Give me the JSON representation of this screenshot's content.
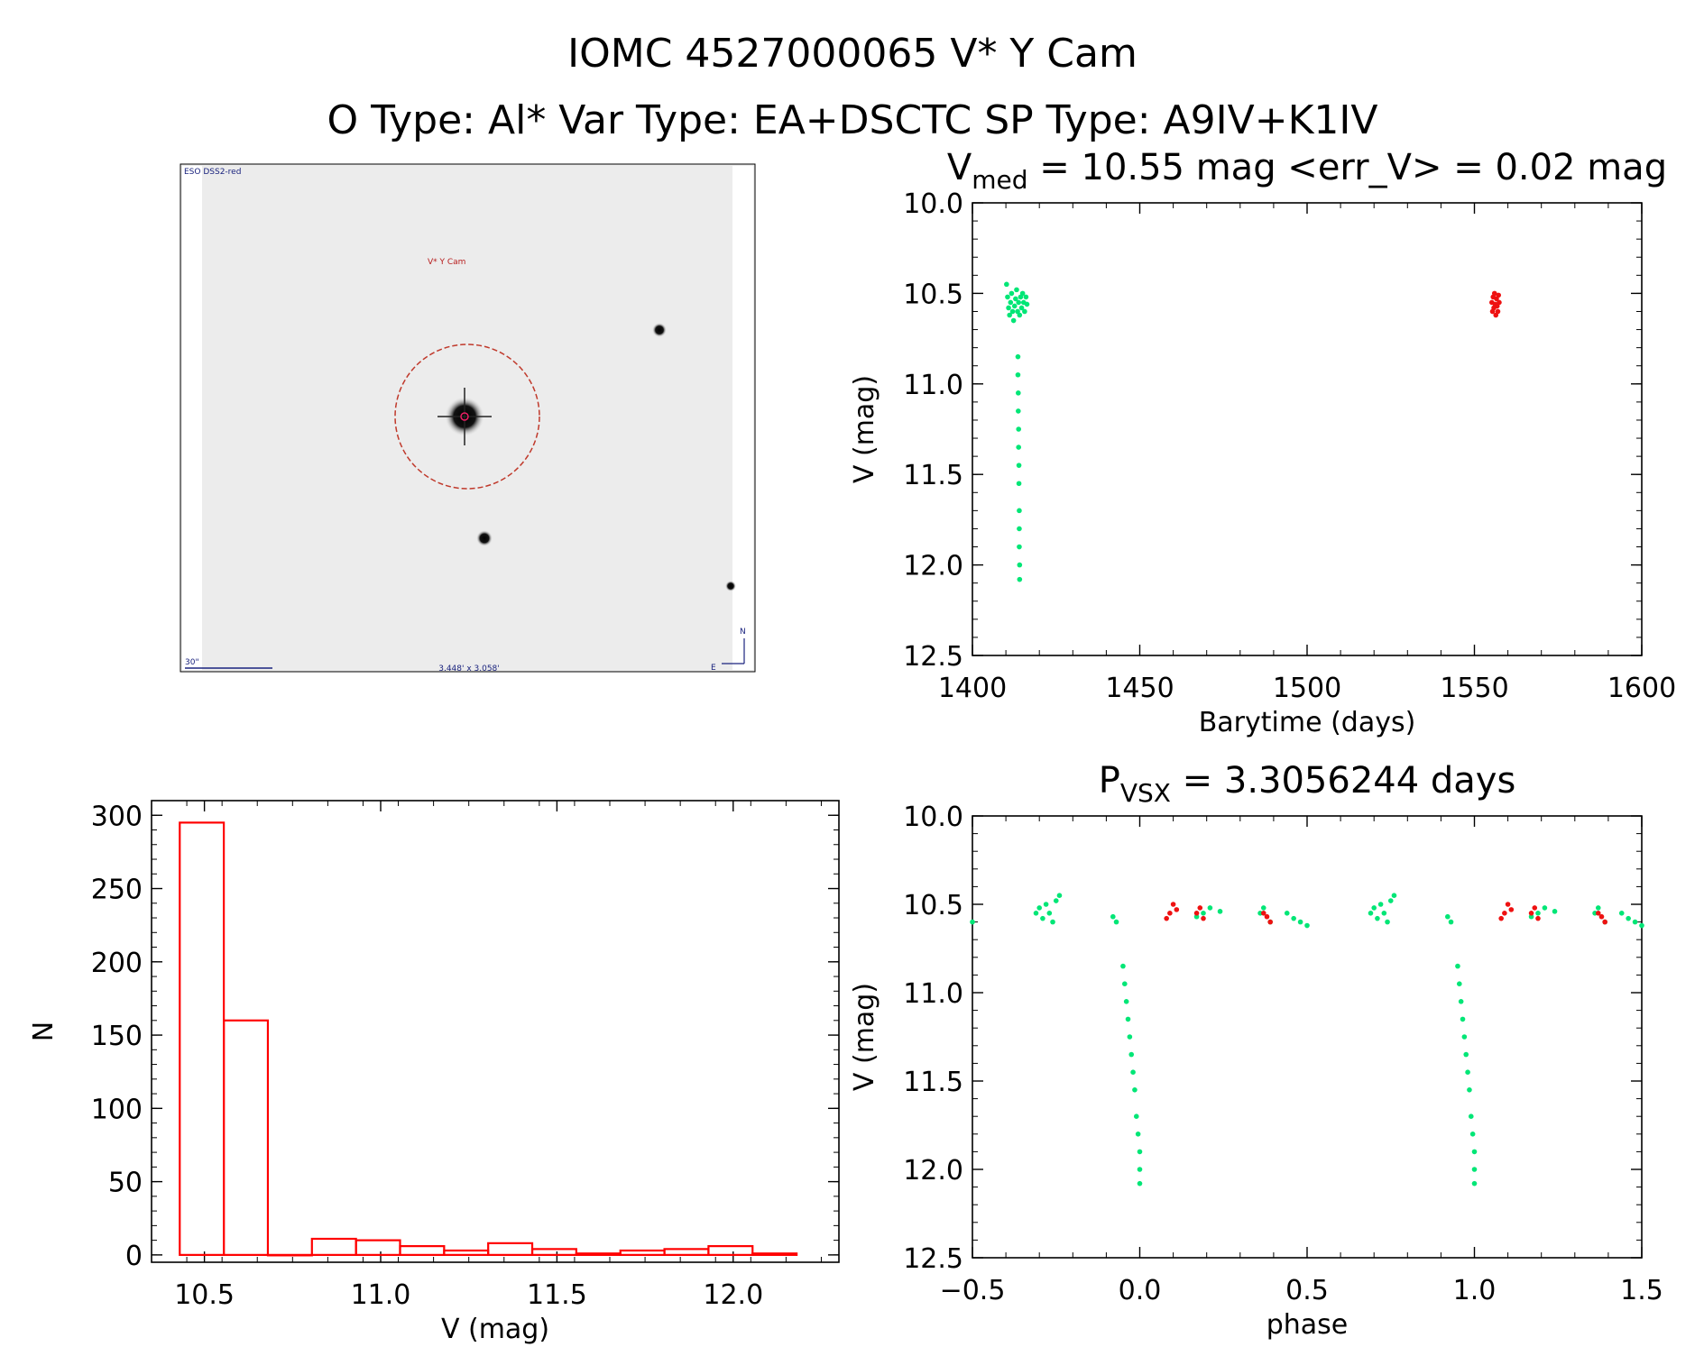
{
  "header": {
    "title": "IOMC 4527000065    V* Y Cam",
    "subtitle": "O Type: Al*  Var Type: EA+DSCTC  SP Type: A9IV+K1IV"
  },
  "image_panel": {
    "survey_label": "ESO DSS2-red",
    "target_label": "V* Y Cam",
    "scale_label": "30\"",
    "fov_label": "3.448' x 3.058'",
    "north_label": "N",
    "east_label": "E"
  },
  "colors": {
    "green": "#00e676",
    "red": "#ee1111",
    "hist": "#ff0000",
    "circle": "#c0392b"
  },
  "chart_data": [
    {
      "id": "lightcurve",
      "type": "scatter",
      "title_main": "V",
      "title_sub": "med",
      "title_rest": " = 10.55 mag <err_V> = 0.02 mag",
      "xlabel": "Barytime (days)",
      "ylabel": "V (mag)",
      "xlim": [
        1400,
        1600
      ],
      "ylim": [
        12.5,
        10.0
      ],
      "xticks": [
        "1400",
        "1450",
        "1500",
        "1550",
        "1600"
      ],
      "yticks": [
        "10.0",
        "10.5",
        "11.0",
        "11.5",
        "12.0",
        "12.5"
      ],
      "series": [
        {
          "name": "green",
          "color": "green",
          "points": [
            [
              1410.2,
              10.45
            ],
            [
              1410.5,
              10.52
            ],
            [
              1410.8,
              10.58
            ],
            [
              1411.1,
              10.62
            ],
            [
              1411.4,
              10.55
            ],
            [
              1411.7,
              10.5
            ],
            [
              1412.0,
              10.6
            ],
            [
              1412.3,
              10.65
            ],
            [
              1412.6,
              10.57
            ],
            [
              1412.9,
              10.53
            ],
            [
              1413.2,
              10.48
            ],
            [
              1413.5,
              10.6
            ],
            [
              1413.8,
              10.55
            ],
            [
              1414.1,
              10.62
            ],
            [
              1414.4,
              10.52
            ],
            [
              1414.7,
              10.58
            ],
            [
              1415.0,
              10.5
            ],
            [
              1415.3,
              10.55
            ],
            [
              1415.6,
              10.6
            ],
            [
              1416.0,
              10.52
            ],
            [
              1416.3,
              10.56
            ],
            [
              1413.6,
              10.85
            ],
            [
              1413.6,
              10.95
            ],
            [
              1413.7,
              11.05
            ],
            [
              1413.7,
              11.15
            ],
            [
              1413.8,
              11.25
            ],
            [
              1413.8,
              11.35
            ],
            [
              1413.9,
              11.45
            ],
            [
              1413.9,
              11.55
            ],
            [
              1414.0,
              11.7
            ],
            [
              1414.0,
              11.8
            ],
            [
              1414.0,
              11.9
            ],
            [
              1414.1,
              12.0
            ],
            [
              1414.1,
              12.08
            ]
          ]
        },
        {
          "name": "red",
          "color": "red",
          "points": [
            [
              1555.2,
              10.55
            ],
            [
              1555.4,
              10.6
            ],
            [
              1555.6,
              10.52
            ],
            [
              1555.8,
              10.58
            ],
            [
              1556.0,
              10.5
            ],
            [
              1556.2,
              10.56
            ],
            [
              1556.4,
              10.62
            ],
            [
              1556.6,
              10.53
            ],
            [
              1556.8,
              10.57
            ],
            [
              1557.0,
              10.6
            ],
            [
              1557.2,
              10.51
            ],
            [
              1557.4,
              10.55
            ]
          ]
        }
      ]
    },
    {
      "id": "histogram",
      "type": "bar",
      "xlabel": "V (mag)",
      "ylabel": "N",
      "xlim": [
        10.35,
        12.3
      ],
      "ylim": [
        -5,
        310
      ],
      "xticks": [
        "10.5",
        "11.0",
        "11.5",
        "12.0"
      ],
      "yticks": [
        "0",
        "50",
        "100",
        "150",
        "200",
        "250",
        "300"
      ],
      "bin_width": 0.125,
      "bins": [
        {
          "start": 10.43,
          "value": 295
        },
        {
          "start": 10.555,
          "value": 160
        },
        {
          "start": 10.68,
          "value": 0
        },
        {
          "start": 10.805,
          "value": 11
        },
        {
          "start": 10.93,
          "value": 10
        },
        {
          "start": 11.055,
          "value": 6
        },
        {
          "start": 11.18,
          "value": 3
        },
        {
          "start": 11.305,
          "value": 8
        },
        {
          "start": 11.43,
          "value": 4
        },
        {
          "start": 11.555,
          "value": 1
        },
        {
          "start": 11.68,
          "value": 3
        },
        {
          "start": 11.805,
          "value": 4
        },
        {
          "start": 11.93,
          "value": 6
        },
        {
          "start": 12.055,
          "value": 1
        }
      ]
    },
    {
      "id": "phased",
      "type": "scatter",
      "title_main": "P",
      "title_sub": "VSX",
      "title_rest": " = 3.3056244 days",
      "xlabel": "phase",
      "ylabel": "V (mag)",
      "xlim": [
        -0.5,
        1.5
      ],
      "ylim": [
        12.5,
        10.0
      ],
      "xticks": [
        "−0.5",
        "0.0",
        "0.5",
        "1.0",
        "1.5"
      ],
      "yticks": [
        "10.0",
        "10.5",
        "11.0",
        "11.5",
        "12.0",
        "12.5"
      ],
      "series": [
        {
          "name": "green",
          "color": "green",
          "points": [
            [
              -0.5,
              10.6
            ],
            [
              -0.31,
              10.55
            ],
            [
              -0.3,
              10.52
            ],
            [
              -0.29,
              10.58
            ],
            [
              -0.28,
              10.5
            ],
            [
              -0.27,
              10.55
            ],
            [
              -0.26,
              10.6
            ],
            [
              -0.25,
              10.48
            ],
            [
              -0.24,
              10.45
            ],
            [
              -0.08,
              10.57
            ],
            [
              -0.07,
              10.6
            ],
            [
              -0.05,
              10.85
            ],
            [
              -0.045,
              10.95
            ],
            [
              -0.04,
              11.05
            ],
            [
              -0.035,
              11.15
            ],
            [
              -0.03,
              11.25
            ],
            [
              -0.025,
              11.35
            ],
            [
              -0.02,
              11.45
            ],
            [
              -0.015,
              11.55
            ],
            [
              -0.01,
              11.7
            ],
            [
              -0.005,
              11.8
            ],
            [
              0.0,
              11.9
            ],
            [
              0.0,
              12.0
            ],
            [
              0.0,
              12.08
            ],
            [
              0.17,
              10.57
            ],
            [
              0.19,
              10.55
            ],
            [
              0.21,
              10.52
            ],
            [
              0.24,
              10.54
            ],
            [
              0.36,
              10.55
            ],
            [
              0.37,
              10.52
            ],
            [
              0.39,
              10.6
            ],
            [
              0.44,
              10.55
            ],
            [
              0.46,
              10.58
            ],
            [
              0.48,
              10.6
            ],
            [
              0.5,
              10.62
            ],
            [
              0.69,
              10.55
            ],
            [
              0.7,
              10.52
            ],
            [
              0.71,
              10.58
            ],
            [
              0.72,
              10.5
            ],
            [
              0.73,
              10.55
            ],
            [
              0.74,
              10.6
            ],
            [
              0.75,
              10.48
            ],
            [
              0.76,
              10.45
            ],
            [
              0.92,
              10.57
            ],
            [
              0.93,
              10.6
            ],
            [
              0.95,
              10.85
            ],
            [
              0.955,
              10.95
            ],
            [
              0.96,
              11.05
            ],
            [
              0.965,
              11.15
            ],
            [
              0.97,
              11.25
            ],
            [
              0.975,
              11.35
            ],
            [
              0.98,
              11.45
            ],
            [
              0.985,
              11.55
            ],
            [
              0.99,
              11.7
            ],
            [
              0.995,
              11.8
            ],
            [
              1.0,
              11.9
            ],
            [
              1.0,
              12.0
            ],
            [
              1.0,
              12.08
            ],
            [
              1.17,
              10.57
            ],
            [
              1.19,
              10.55
            ],
            [
              1.21,
              10.52
            ],
            [
              1.24,
              10.54
            ],
            [
              1.36,
              10.55
            ],
            [
              1.37,
              10.52
            ],
            [
              1.39,
              10.6
            ],
            [
              1.44,
              10.55
            ],
            [
              1.46,
              10.58
            ],
            [
              1.48,
              10.6
            ],
            [
              1.5,
              10.62
            ]
          ]
        },
        {
          "name": "red",
          "color": "red",
          "points": [
            [
              0.08,
              10.58
            ],
            [
              0.09,
              10.55
            ],
            [
              0.1,
              10.5
            ],
            [
              0.11,
              10.53
            ],
            [
              0.17,
              10.55
            ],
            [
              0.18,
              10.52
            ],
            [
              0.19,
              10.58
            ],
            [
              0.37,
              10.55
            ],
            [
              0.38,
              10.57
            ],
            [
              0.39,
              10.6
            ],
            [
              1.08,
              10.58
            ],
            [
              1.09,
              10.55
            ],
            [
              1.1,
              10.5
            ],
            [
              1.11,
              10.53
            ],
            [
              1.17,
              10.55
            ],
            [
              1.18,
              10.52
            ],
            [
              1.19,
              10.58
            ],
            [
              1.37,
              10.55
            ],
            [
              1.38,
              10.57
            ],
            [
              1.39,
              10.6
            ]
          ]
        }
      ]
    }
  ]
}
